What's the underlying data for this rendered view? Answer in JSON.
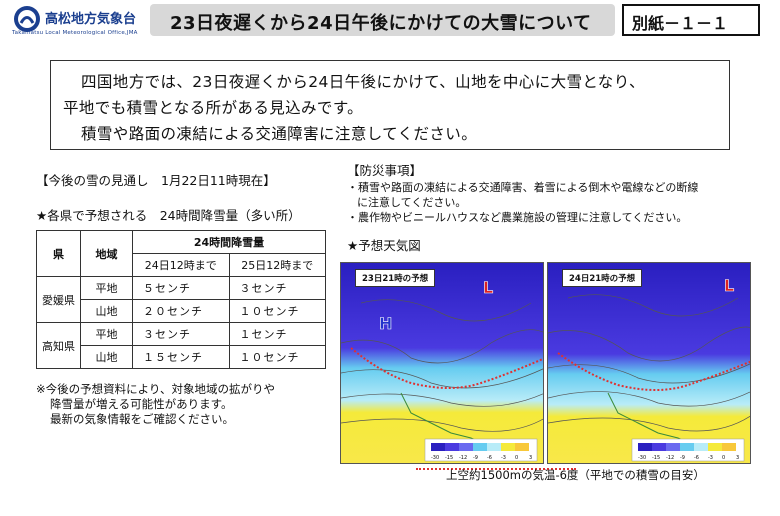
{
  "header": {
    "office_name": "高松地方気象台",
    "office_name_en": "Takamatsu Local Meteorological Office,JMA",
    "title": "23日夜遅くから24日午後にかけての大雪について",
    "doc_number": "別紙－１－１"
  },
  "summary": {
    "line1": "四国地方では、23日夜遅くから24日午後にかけて、山地を中心に大雪となり、",
    "line2": "平地でも積雪となる所がある見込みです。",
    "line3": "積雪や路面の凍結による交通障害に注意してください。"
  },
  "outlook": {
    "heading": "【今後の雪の見通し　1月22日11時現在】",
    "table_title": "★各県で予想される　24時間降雪量（多い所）",
    "table": {
      "col_pref": "県",
      "col_area": "地域",
      "col_amount": "24時間降雪量",
      "col_day1": "24日12時まで",
      "col_day2": "25日12時まで",
      "rows": [
        {
          "pref": "愛媛県",
          "area": "平地",
          "d1": "５センチ",
          "d2": "３センチ"
        },
        {
          "area": "山地",
          "d1": "２０センチ",
          "d2": "１０センチ"
        },
        {
          "pref": "高知県",
          "area": "平地",
          "d1": "３センチ",
          "d2": "１センチ"
        },
        {
          "area": "山地",
          "d1": "１５センチ",
          "d2": "１０センチ"
        }
      ]
    },
    "note1": "※今後の予想資料により、対象地域の拡がりや",
    "note2": "降雪量が増える可能性があります。",
    "note3": "最新の気象情報をご確認ください。"
  },
  "prevention": {
    "heading": "【防災事項】",
    "item1a": "・積雪や路面の凍結による交通障害、着雪による倒木や電線などの断線",
    "item1b": "に注意してください。",
    "item2": "・農作物やビニールハウスなど農業施設の管理に注意してください。"
  },
  "forecast_maps": {
    "heading": "★予想天気図",
    "map1_label": "23日21時の予想",
    "map2_label": "24日21時の予想",
    "scale_labels": [
      "-30",
      "-15",
      "-12",
      "-9",
      "-6",
      "-3",
      "0",
      "3"
    ],
    "legend": "上空約1500mの気温-6度（平地での積雪の目安）",
    "colors": {
      "cold": "#3a2fd0",
      "mid": "#5fc8ee",
      "warm": "#f5ea3a",
      "front_line": "#e03030",
      "high": "#2233cc",
      "low": "#dd2222"
    }
  }
}
